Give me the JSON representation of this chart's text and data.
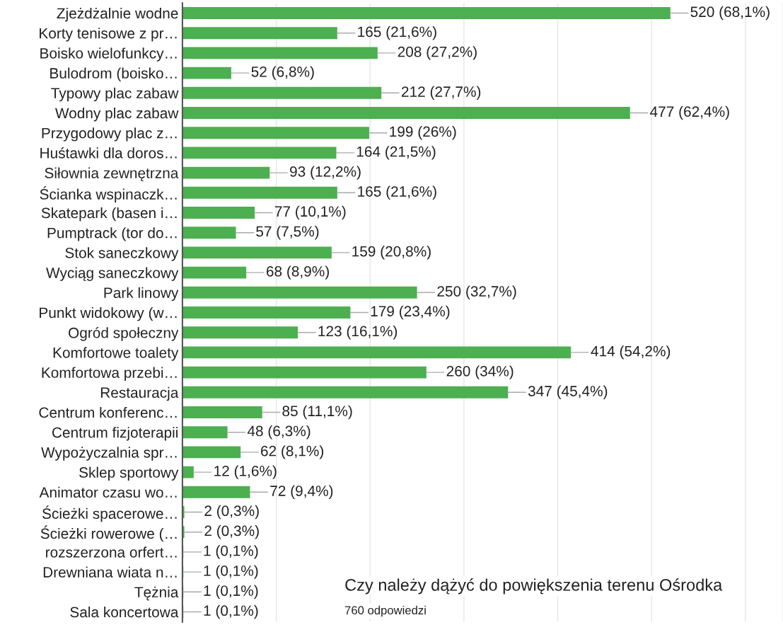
{
  "chart_data": {
    "type": "bar",
    "orientation": "horizontal",
    "categories": [
      "Zjeżdżalnie wodne",
      "Korty tenisowe z pr…",
      "Boisko wielofunkcy…",
      "Bulodrom (boisko…",
      "Typowy plac zabaw",
      "Wodny plac zabaw",
      "Przygodowy plac z…",
      "Huśtawki dla doros…",
      "Siłownia zewnętrzna",
      "Ścianka wspinaczk…",
      "Skatepark (basen i…",
      "Pumptrack (tor do…",
      "Stok saneczkowy",
      "Wyciąg saneczkowy",
      "Park linowy",
      "Punkt widokowy (w…",
      "Ogród społeczny",
      "Komfortowe toalety",
      "Komfortowa przebi…",
      "Restauracja",
      "Centrum konferenc…",
      "Centrum fizjoterapii",
      "Wypożyczalnia spr…",
      "Sklep sportowy",
      "Animator czasu wo…",
      "Ścieżki spacerowe…",
      "Ścieżki rowerowe (…",
      "rozszerzona orfert…",
      "Drewniana wiata n…",
      "Tężnia",
      "Sala koncertowa"
    ],
    "values": [
      520,
      165,
      208,
      52,
      212,
      477,
      199,
      164,
      93,
      165,
      77,
      57,
      159,
      68,
      250,
      179,
      123,
      414,
      260,
      347,
      85,
      48,
      62,
      12,
      72,
      2,
      2,
      1,
      1,
      1,
      1
    ],
    "value_labels": [
      "520 (68,1%)",
      "165 (21,6%)",
      "208 (27,2%)",
      "52 (6,8%)",
      "212 (27,7%)",
      "477 (62,4%)",
      "199 (26%)",
      "164 (21,5%)",
      "93 (12,2%)",
      "165 (21,6%)",
      "77 (10,1%)",
      "57 (7,5%)",
      "159 (20,8%)",
      "68 (8,9%)",
      "250 (32,7%)",
      "179 (23,4%)",
      "123 (16,1%)",
      "414 (54,2%)",
      "260 (34%)",
      "347 (45,4%)",
      "85 (11,1%)",
      "48 (6,3%)",
      "62 (8,1%)",
      "12 (1,6%)",
      "72 (9,4%)",
      "2 (0,3%)",
      "2 (0,3%)",
      "1 (0,1%)",
      "1 (0,1%)",
      "1 (0,1%)",
      "1 (0,1%)"
    ],
    "color": "#4caf50",
    "xlim": [
      0,
      640
    ],
    "xticks": [
      {
        "value": 0,
        "label": null
      },
      {
        "value": 100,
        "label": null
      },
      {
        "value": 200,
        "label": null
      },
      {
        "value": 300,
        "label": null
      },
      {
        "value": 400,
        "label": null
      },
      {
        "value": 500,
        "label": null
      },
      {
        "value": 600,
        "label": null
      }
    ],
    "grid": "x",
    "annotations": [
      "Czy należy dążyć do powiększenia terenu Ośrodka",
      "760 odpowiedzi"
    ]
  }
}
